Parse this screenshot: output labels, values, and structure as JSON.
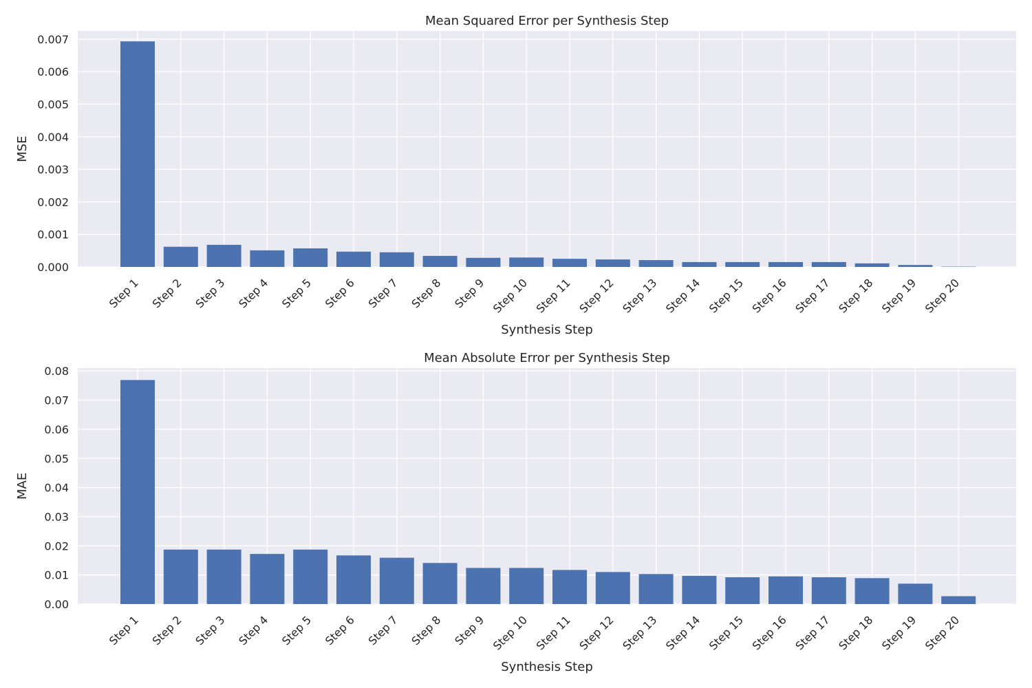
{
  "chart_data": [
    {
      "type": "bar",
      "title": "Mean Squared Error per Synthesis Step",
      "xlabel": "Synthesis Step",
      "ylabel": "MSE",
      "categories": [
        "Step 1",
        "Step 2",
        "Step 3",
        "Step 4",
        "Step 5",
        "Step 6",
        "Step 7",
        "Step 8",
        "Step 9",
        "Step 10",
        "Step 11",
        "Step 12",
        "Step 13",
        "Step 14",
        "Step 15",
        "Step 16",
        "Step 17",
        "Step 18",
        "Step 19",
        "Step 20"
      ],
      "values": [
        0.00693,
        0.00062,
        0.00068,
        0.00051,
        0.00057,
        0.00047,
        0.00045,
        0.00034,
        0.00028,
        0.00029,
        0.00025,
        0.00023,
        0.00021,
        0.00015,
        0.00015,
        0.00015,
        0.00015,
        0.00011,
        6e-05,
        1e-05
      ],
      "ylim": [
        0,
        0.00725
      ],
      "yticks": [
        "0.000",
        "0.001",
        "0.002",
        "0.003",
        "0.004",
        "0.005",
        "0.006",
        "0.007"
      ],
      "ytick_values": [
        0,
        0.001,
        0.002,
        0.003,
        0.004,
        0.005,
        0.006,
        0.007
      ],
      "bar_color": "#4c72b0",
      "background": "#eaeaf2",
      "grid": true,
      "legend": "none"
    },
    {
      "type": "bar",
      "title": "Mean Absolute Error per Synthesis Step",
      "xlabel": "Synthesis Step",
      "ylabel": "MAE",
      "categories": [
        "Step 1",
        "Step 2",
        "Step 3",
        "Step 4",
        "Step 5",
        "Step 6",
        "Step 7",
        "Step 8",
        "Step 9",
        "Step 10",
        "Step 11",
        "Step 12",
        "Step 13",
        "Step 14",
        "Step 15",
        "Step 16",
        "Step 17",
        "Step 18",
        "Step 19",
        "Step 20"
      ],
      "values": [
        0.0769,
        0.0187,
        0.0187,
        0.0172,
        0.0187,
        0.0167,
        0.0159,
        0.0141,
        0.0124,
        0.0124,
        0.0117,
        0.011,
        0.0103,
        0.0097,
        0.0092,
        0.0095,
        0.0092,
        0.0089,
        0.007,
        0.0027
      ],
      "ylim": [
        0,
        0.081
      ],
      "yticks": [
        "0.00",
        "0.01",
        "0.02",
        "0.03",
        "0.04",
        "0.05",
        "0.06",
        "0.07",
        "0.08"
      ],
      "ytick_values": [
        0,
        0.01,
        0.02,
        0.03,
        0.04,
        0.05,
        0.06,
        0.07,
        0.08
      ],
      "bar_color": "#4c72b0",
      "background": "#eaeaf2",
      "grid": true,
      "legend": "none"
    }
  ]
}
